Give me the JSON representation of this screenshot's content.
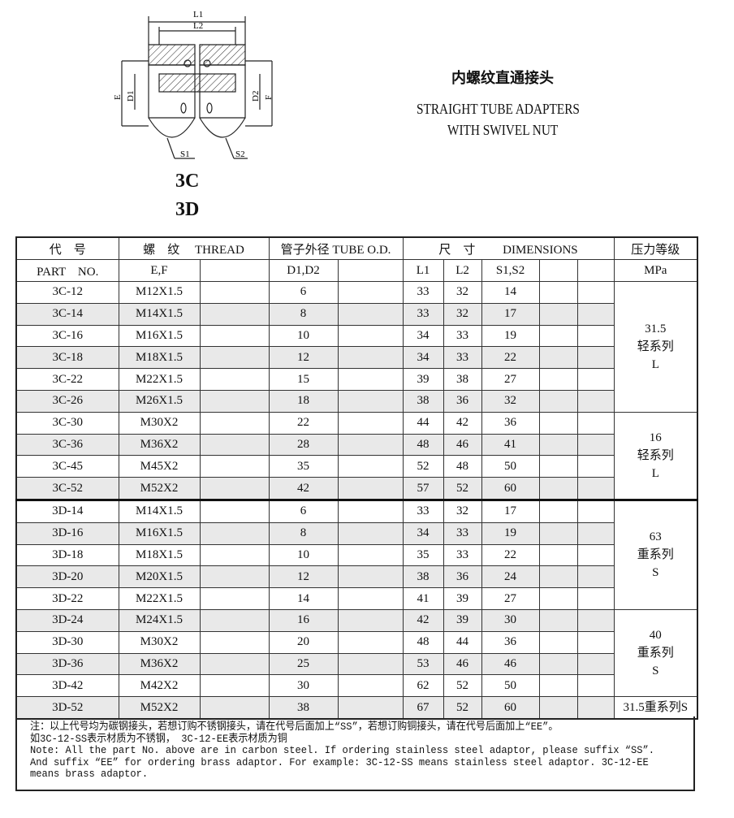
{
  "drawing": {
    "labels": {
      "L1": "L1",
      "L2": "L2",
      "E": "E",
      "D1": "D1",
      "D2": "D2",
      "F": "F",
      "S1": "S1",
      "S2": "S2"
    },
    "codes": [
      "3C",
      "3D"
    ]
  },
  "title": {
    "cn": "内螺纹直通接头",
    "en": [
      "STRAIGHT TUBE ADAPTERS",
      "WITH SWIVEL NUT"
    ]
  },
  "table": {
    "header": {
      "part": [
        "代　号",
        "PART　NO."
      ],
      "thread": "螺　纹　 THREAD",
      "thread_sub": "E,F",
      "tube": "管子外径 TUBE O.D.",
      "tube_sub": "D1,D2",
      "dims": "尺　寸　　 DIMENSIONS",
      "dims_sub": [
        "L1",
        "L2",
        "S1,S2"
      ],
      "pressure": [
        "压力等级",
        "MPa"
      ]
    },
    "groups": [
      {
        "pressure": [
          "31.5",
          "轻系列",
          "L"
        ],
        "rows": [
          [
            "3C-12",
            "M12X1.5",
            "6",
            "33",
            "32",
            "14"
          ],
          [
            "3C-14",
            "M14X1.5",
            "8",
            "33",
            "32",
            "17"
          ],
          [
            "3C-16",
            "M16X1.5",
            "10",
            "34",
            "33",
            "19"
          ],
          [
            "3C-18",
            "M18X1.5",
            "12",
            "34",
            "33",
            "22"
          ],
          [
            "3C-22",
            "M22X1.5",
            "15",
            "39",
            "38",
            "27"
          ],
          [
            "3C-26",
            "M26X1.5",
            "18",
            "38",
            "36",
            "32"
          ]
        ]
      },
      {
        "pressure": [
          "16",
          "轻系列",
          "L"
        ],
        "rows": [
          [
            "3C-30",
            "M30X2",
            "22",
            "44",
            "42",
            "36"
          ],
          [
            "3C-36",
            "M36X2",
            "28",
            "48",
            "46",
            "41"
          ],
          [
            "3C-45",
            "M45X2",
            "35",
            "52",
            "48",
            "50"
          ],
          [
            "3C-52",
            "M52X2",
            "42",
            "57",
            "52",
            "60"
          ]
        ]
      },
      {
        "pressure": [
          "63",
          "重系列",
          "S"
        ],
        "rows": [
          [
            "3D-14",
            "M14X1.5",
            "6",
            "33",
            "32",
            "17"
          ],
          [
            "3D-16",
            "M16X1.5",
            "8",
            "34",
            "33",
            "19"
          ],
          [
            "3D-18",
            "M18X1.5",
            "10",
            "35",
            "33",
            "22"
          ],
          [
            "3D-20",
            "M20X1.5",
            "12",
            "38",
            "36",
            "24"
          ],
          [
            "3D-22",
            "M22X1.5",
            "14",
            "41",
            "39",
            "27"
          ]
        ]
      },
      {
        "pressure": [
          "40",
          "重系列",
          "S"
        ],
        "rows": [
          [
            "3D-24",
            "M24X1.5",
            "16",
            "42",
            "39",
            "30"
          ],
          [
            "3D-30",
            "M30X2",
            "20",
            "48",
            "44",
            "36"
          ],
          [
            "3D-36",
            "M36X2",
            "25",
            "53",
            "46",
            "46"
          ],
          [
            "3D-42",
            "M42X2",
            "30",
            "62",
            "52",
            "50"
          ]
        ]
      },
      {
        "pressure": [
          "31.5重系列S"
        ],
        "rows": [
          [
            "3D-52",
            "M52X2",
            "38",
            "67",
            "52",
            "60"
          ]
        ]
      }
    ],
    "notes": [
      "注：以上代号均为碳钢接头，若想订购不锈钢接头，请在代号后面加上“SS”，若想订购铜接头，请在代号后面加上“EE”。",
      "如3C-12-SS表示材质为不锈钢， 3C-12-EE表示材质为铜",
      "Note:  All the part No. above are in carbon steel. If ordering stainless steel adaptor, please suffix “SS”.",
      "And suffix “EE” for ordering brass adaptor. For example: 3C-12-SS  means stainless steel adaptor. 3C-12-EE",
      "means brass adaptor."
    ]
  }
}
